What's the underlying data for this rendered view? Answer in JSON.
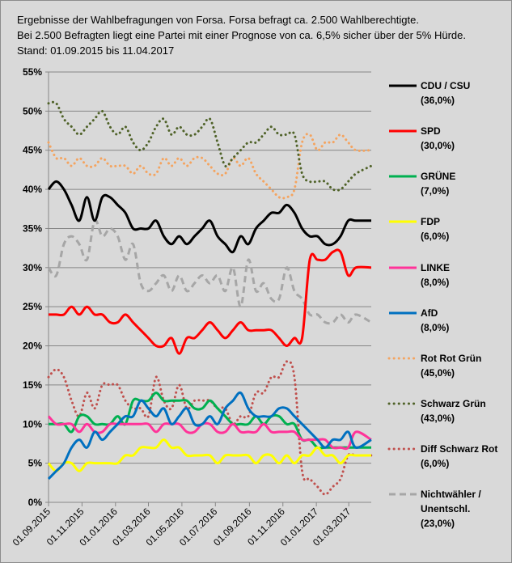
{
  "header": {
    "line1": "Ergebnisse der Wahlbefragungen von Forsa. Forsa befragt ca. 2.500  Wahlberechtigte.",
    "line2": "Bei 2.500  Befragten liegt eine Partei mit einer Prognose von ca. 6,5% sicher über der 5% Hürde.",
    "line3": "Stand: 01.09.2015   bis 11.04.2017"
  },
  "chart_data": {
    "type": "line",
    "title": "Ergebnisse der Wahlbefragungen von Forsa",
    "xlabel": "",
    "ylabel": "",
    "ylim": [
      0,
      55
    ],
    "yticks": [
      "0%",
      "5%",
      "10%",
      "15%",
      "20%",
      "25%",
      "30%",
      "35%",
      "40%",
      "45%",
      "50%",
      "55%"
    ],
    "x_range": [
      "01.09.2015",
      "11.04.2017"
    ],
    "xticks": [
      "01.09.2015",
      "01.11.2015",
      "01.01.2016",
      "01.03.2016",
      "01.05.2016",
      "01.07.2016",
      "01.09.2016",
      "01.11.2016",
      "01.01.2017",
      "01.03.2017"
    ],
    "grid": "horizontal",
    "legend_position": "right",
    "x_days": [
      0,
      14,
      28,
      42,
      56,
      70,
      84,
      98,
      112,
      126,
      140,
      154,
      168,
      182,
      196,
      210,
      224,
      238,
      252,
      266,
      280,
      294,
      308,
      322,
      336,
      350,
      364,
      378,
      392,
      406,
      420,
      434,
      448,
      462,
      476,
      490,
      504,
      518,
      532,
      546,
      560,
      588
    ],
    "series": [
      {
        "name": "CDU / CSU",
        "legend": "(36,0%)",
        "color": "#000000",
        "style": "solid",
        "values": [
          40,
          41,
          40,
          38,
          36,
          39,
          36,
          39,
          39,
          38,
          37,
          35,
          35,
          35,
          36,
          34,
          33,
          34,
          33,
          34,
          35,
          36,
          34,
          33,
          32,
          34,
          33,
          35,
          36,
          37,
          37,
          38,
          37,
          35,
          34,
          34,
          33,
          33,
          34,
          36,
          36,
          36
        ]
      },
      {
        "name": "SPD",
        "legend": "(30,0%)",
        "color": "#ff0000",
        "style": "solid",
        "values": [
          24,
          24,
          24,
          25,
          24,
          25,
          24,
          24,
          23,
          23,
          24,
          23,
          22,
          21,
          20,
          20,
          21,
          19,
          21,
          21,
          22,
          23,
          22,
          21,
          22,
          23,
          22,
          22,
          22,
          22,
          21,
          20,
          21,
          21,
          31,
          31,
          31,
          32,
          32,
          29,
          30,
          30
        ]
      },
      {
        "name": "GRÜNE",
        "legend": "(7,0%)",
        "color": "#00b050",
        "style": "solid",
        "values": [
          10,
          10,
          10,
          9,
          11,
          11,
          10,
          10,
          10,
          11,
          10,
          13,
          13,
          13,
          14,
          13,
          13,
          13,
          13,
          12,
          12,
          13,
          12,
          11,
          10,
          10,
          10,
          11,
          10,
          11,
          11,
          10,
          10,
          8,
          8,
          7,
          7,
          7,
          7,
          7,
          7,
          7
        ]
      },
      {
        "name": "FDP",
        "legend": "(6,0%)",
        "color": "#ffff00",
        "style": "solid",
        "values": [
          5,
          4,
          5,
          5,
          4,
          5,
          5,
          5,
          5,
          5,
          6,
          6,
          7,
          7,
          7,
          8,
          7,
          7,
          6,
          6,
          6,
          6,
          5,
          6,
          6,
          6,
          6,
          5,
          6,
          6,
          5,
          6,
          5,
          6,
          6,
          7,
          6,
          6,
          5,
          6,
          6,
          6
        ]
      },
      {
        "name": "LINKE",
        "legend": "(8,0%)",
        "color": "#ff3399",
        "style": "solid",
        "values": [
          11,
          10,
          10,
          10,
          9,
          10,
          9,
          9,
          10,
          10,
          10,
          10,
          10,
          10,
          9,
          10,
          10,
          10,
          9,
          9,
          10,
          10,
          9,
          9,
          10,
          9,
          9,
          9,
          10,
          9,
          9,
          9,
          9,
          8,
          8,
          8,
          8,
          7,
          7,
          7,
          9,
          8
        ]
      },
      {
        "name": "AfD",
        "legend": "(8,0%)",
        "color": "#0070c0",
        "style": "solid",
        "values": [
          3,
          4,
          5,
          7,
          8,
          7,
          9,
          8,
          9,
          10,
          11,
          11,
          13,
          12,
          11,
          12,
          10,
          11,
          12,
          10,
          10,
          11,
          10,
          12,
          13,
          14,
          12,
          11,
          11,
          11,
          12,
          12,
          11,
          10,
          9,
          8,
          7,
          8,
          8,
          9,
          7,
          8
        ]
      },
      {
        "name": "Rot Rot Grün",
        "legend": "(45,0%)",
        "color": "#f4a460",
        "style": "dotted",
        "values": [
          46,
          44,
          44,
          43,
          44,
          43,
          43,
          44,
          43,
          43,
          43,
          42,
          43,
          42,
          42,
          44,
          43,
          44,
          43,
          44,
          44,
          43,
          42,
          42,
          44,
          43,
          44,
          42,
          41,
          40,
          39,
          39,
          40,
          46,
          47,
          45,
          46,
          46,
          47,
          46,
          45,
          45
        ]
      },
      {
        "name": "Schwarz Grün",
        "legend": "(43,0%)",
        "color": "#4f6228",
        "style": "dotted",
        "values": [
          51,
          51,
          49,
          48,
          47,
          48,
          49,
          50,
          48,
          47,
          48,
          46,
          45,
          46,
          48,
          49,
          47,
          48,
          47,
          47,
          48,
          49,
          46,
          43,
          44,
          45,
          46,
          46,
          47,
          48,
          47,
          47,
          47,
          42,
          41,
          41,
          41,
          40,
          40,
          41,
          42,
          43
        ]
      },
      {
        "name": "Diff Schwarz Rot",
        "legend": "(6,0%)",
        "color": "#c0504d",
        "style": "dotted",
        "values": [
          16,
          17,
          16,
          13,
          11,
          14,
          12,
          15,
          15,
          15,
          13,
          12,
          12,
          11,
          16,
          13,
          12,
          15,
          12,
          13,
          13,
          13,
          12,
          12,
          10,
          11,
          11,
          14,
          14,
          16,
          16,
          18,
          16,
          4,
          3,
          2,
          1,
          2,
          3,
          6,
          6,
          6
        ]
      },
      {
        "name": "Nichtwähler / Unentschl.",
        "legend": "(23,0%)",
        "color": "#a6a6a6",
        "style": "dashed",
        "values": [
          30,
          29,
          33,
          34,
          33,
          31,
          36,
          34,
          35,
          34,
          31,
          33,
          28,
          27,
          28,
          29,
          27,
          29,
          27,
          28,
          29,
          28,
          29,
          27,
          30,
          25,
          31,
          27,
          28,
          26,
          26,
          30,
          27,
          26,
          24,
          24,
          23,
          23,
          24,
          23,
          24,
          23
        ]
      }
    ]
  }
}
